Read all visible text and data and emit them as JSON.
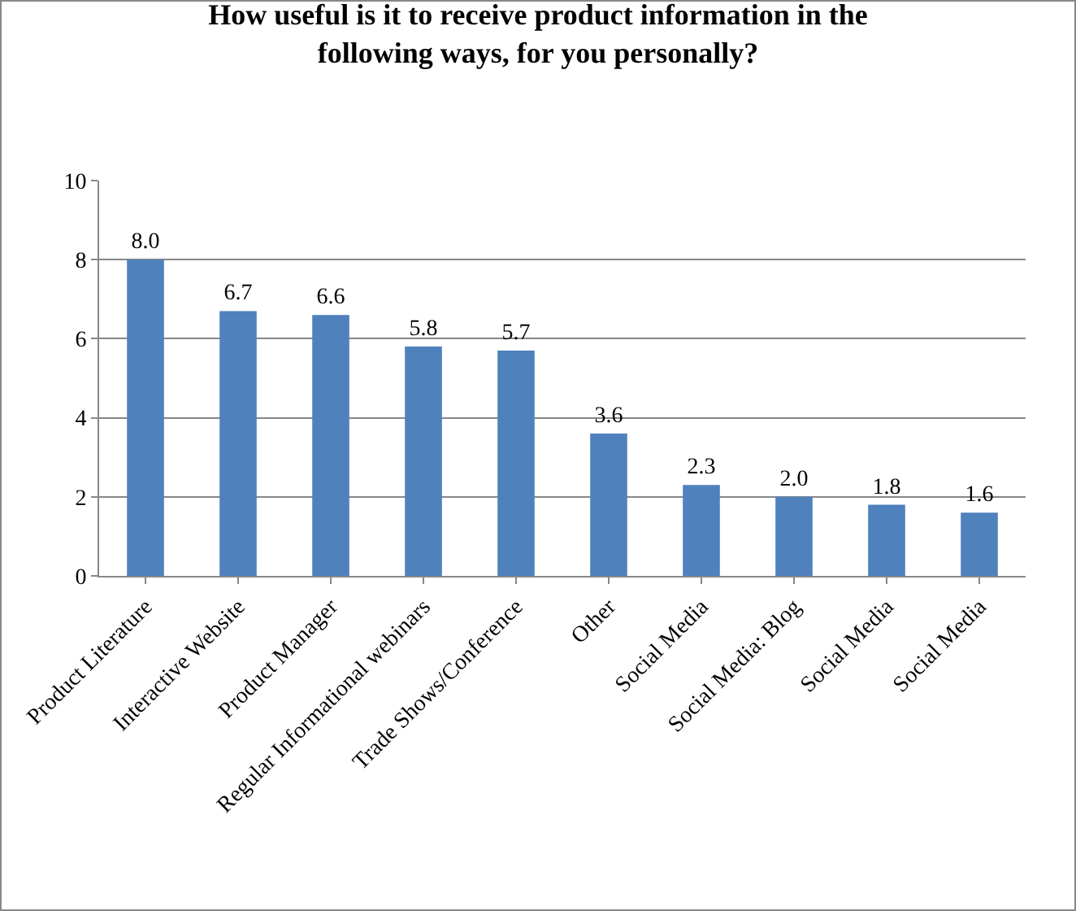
{
  "chart_data": {
    "type": "bar",
    "title": "How useful is it to receive product information in the following ways, for you personally?",
    "categories": [
      "Product Literature",
      "Interactive Website",
      "Product Manager",
      "Regular Informational webinars",
      "Trade Shows/Conference",
      "Other",
      "Social Media",
      "Social Media: Blog",
      "Social Media",
      "Social Media"
    ],
    "values": [
      8.0,
      6.7,
      6.6,
      5.8,
      5.7,
      3.6,
      2.3,
      2.0,
      1.8,
      1.6
    ],
    "value_labels": [
      "8.0",
      "6.7",
      "6.6",
      "5.8",
      "5.7",
      "3.6",
      "2.3",
      "2.0",
      "1.8",
      "1.6"
    ],
    "color": "#4f81bd",
    "ylim": [
      0,
      10
    ],
    "yticks": [
      0,
      2,
      4,
      6,
      8,
      10
    ],
    "grid": "y"
  }
}
